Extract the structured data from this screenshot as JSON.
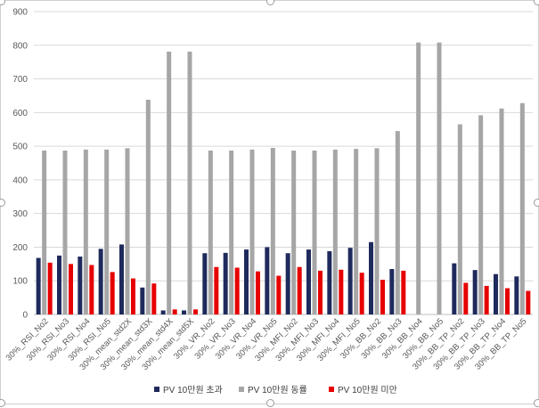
{
  "chart_data": {
    "type": "bar",
    "title": "",
    "xlabel": "",
    "ylabel": "",
    "ylim": [
      0,
      900
    ],
    "yticks": [
      0,
      100,
      200,
      300,
      400,
      500,
      600,
      700,
      800,
      900
    ],
    "grid": true,
    "legend_position": "bottom",
    "categories": [
      "30%_RSI_No2",
      "30%_RSI_No3",
      "30%_RSI_No4",
      "30%_RSI_No5",
      "30%_mean_std2X",
      "30%_mean_std3X",
      "30%_mean_std4X",
      "30%_mean_std5X",
      "30%_VR_No2",
      "30%_VR_No3",
      "30%_VR_No4",
      "30%_VR_No5",
      "30%_MFI_No2",
      "30%_MFI_No3",
      "30%_MFI_No4",
      "30%_MFI_No5",
      "30%_BB_No2",
      "30%_BB_No3",
      "30%_BB_No4",
      "30%_BB_No5",
      "30%_BB_TP_No2",
      "30%_BB_TP_No3",
      "30%_BB_TP_No4",
      "30%_BB_TP_No5"
    ],
    "series": [
      {
        "name": "PV 10만원 초과",
        "color": "#1f2a5c",
        "values": [
          168,
          175,
          172,
          195,
          208,
          80,
          12,
          12,
          182,
          183,
          193,
          200,
          182,
          193,
          188,
          198,
          215,
          135,
          0,
          0,
          152,
          132,
          120,
          113
        ]
      },
      {
        "name": "PV 10만원 동률",
        "color": "#a6a6a6",
        "values": [
          487,
          487,
          490,
          490,
          494,
          638,
          781,
          781,
          487,
          487,
          490,
          495,
          487,
          487,
          490,
          492,
          494,
          545,
          808,
          808,
          565,
          592,
          612,
          628
        ]
      },
      {
        "name": "PV 10만원 미만",
        "color": "#e60000",
        "values": [
          154,
          150,
          147,
          126,
          107,
          92,
          15,
          15,
          141,
          139,
          128,
          115,
          141,
          130,
          133,
          124,
          103,
          130,
          0,
          0,
          94,
          85,
          78,
          70
        ]
      }
    ]
  }
}
